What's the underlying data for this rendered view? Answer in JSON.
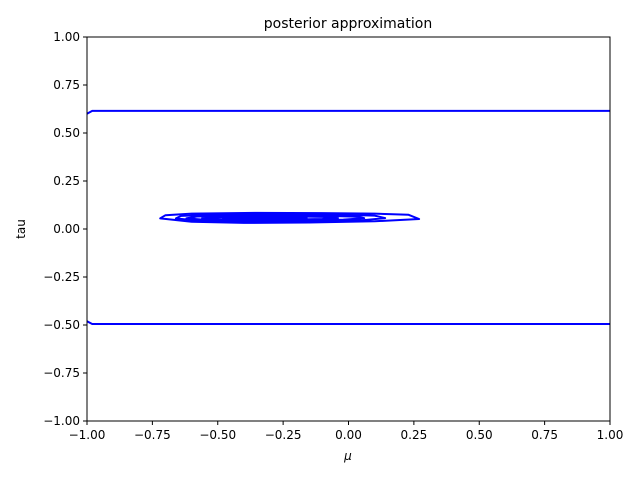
{
  "chart_data": {
    "type": "contour",
    "title": "posterior approximation",
    "xlabel": "μ",
    "ylabel": "tau",
    "xlim": [
      -1.0,
      1.0
    ],
    "ylim": [
      -1.0,
      1.0
    ],
    "xticks": [
      "−1.00",
      "−0.75",
      "−0.50",
      "−0.25",
      "0.00",
      "0.25",
      "0.50",
      "0.75",
      "1.00"
    ],
    "yticks": [
      "−1.00",
      "−0.75",
      "−0.50",
      "−0.25",
      "0.00",
      "0.25",
      "0.50",
      "0.75",
      "1.00"
    ],
    "grid": false,
    "line_color": "#0000ff",
    "lines": [
      {
        "points": [
          [
            -1.0,
            0.6
          ],
          [
            -0.98,
            0.615
          ],
          [
            1.0,
            0.615
          ]
        ]
      },
      {
        "points": [
          [
            -1.0,
            -0.48
          ],
          [
            -0.98,
            -0.495
          ],
          [
            1.0,
            -0.495
          ]
        ]
      },
      {
        "points": [
          [
            -0.72,
            0.055
          ],
          [
            -0.7,
            0.072
          ],
          [
            -0.6,
            0.08
          ],
          [
            -0.35,
            0.084
          ],
          [
            -0.1,
            0.083
          ],
          [
            0.1,
            0.08
          ],
          [
            0.23,
            0.074
          ],
          [
            0.27,
            0.052
          ],
          [
            0.1,
            0.04
          ],
          [
            -0.15,
            0.034
          ],
          [
            -0.4,
            0.032
          ],
          [
            -0.6,
            0.038
          ],
          [
            -0.72,
            0.055
          ]
        ],
        "closed": true
      },
      {
        "points": [
          [
            -0.66,
            0.055
          ],
          [
            -0.64,
            0.068
          ],
          [
            -0.5,
            0.075
          ],
          [
            -0.3,
            0.077
          ],
          [
            -0.05,
            0.075
          ],
          [
            0.1,
            0.07
          ],
          [
            0.14,
            0.057
          ],
          [
            0.05,
            0.045
          ],
          [
            -0.15,
            0.04
          ],
          [
            -0.4,
            0.039
          ],
          [
            -0.58,
            0.044
          ],
          [
            -0.66,
            0.055
          ]
        ],
        "closed": true
      },
      {
        "points": [
          [
            -0.62,
            0.055
          ],
          [
            -0.58,
            0.065
          ],
          [
            -0.45,
            0.07
          ],
          [
            -0.28,
            0.071
          ],
          [
            -0.1,
            0.069
          ],
          [
            0.04,
            0.064
          ],
          [
            0.06,
            0.056
          ],
          [
            -0.02,
            0.049
          ],
          [
            -0.2,
            0.045
          ],
          [
            -0.4,
            0.045
          ],
          [
            -0.55,
            0.048
          ],
          [
            -0.62,
            0.055
          ]
        ],
        "closed": true
      },
      {
        "points": [
          [
            -0.56,
            0.056
          ],
          [
            -0.5,
            0.062
          ],
          [
            -0.38,
            0.066
          ],
          [
            -0.25,
            0.066
          ],
          [
            -0.1,
            0.063
          ],
          [
            -0.04,
            0.057
          ],
          [
            -0.1,
            0.052
          ],
          [
            -0.25,
            0.049
          ],
          [
            -0.4,
            0.049
          ],
          [
            -0.52,
            0.052
          ],
          [
            -0.56,
            0.056
          ]
        ],
        "closed": true
      },
      {
        "points": [
          [
            -0.48,
            0.057
          ],
          [
            -0.42,
            0.061
          ],
          [
            -0.32,
            0.062
          ],
          [
            -0.22,
            0.061
          ],
          [
            -0.16,
            0.057
          ],
          [
            -0.22,
            0.053
          ],
          [
            -0.32,
            0.052
          ],
          [
            -0.42,
            0.053
          ],
          [
            -0.48,
            0.057
          ]
        ],
        "closed": true
      }
    ]
  }
}
